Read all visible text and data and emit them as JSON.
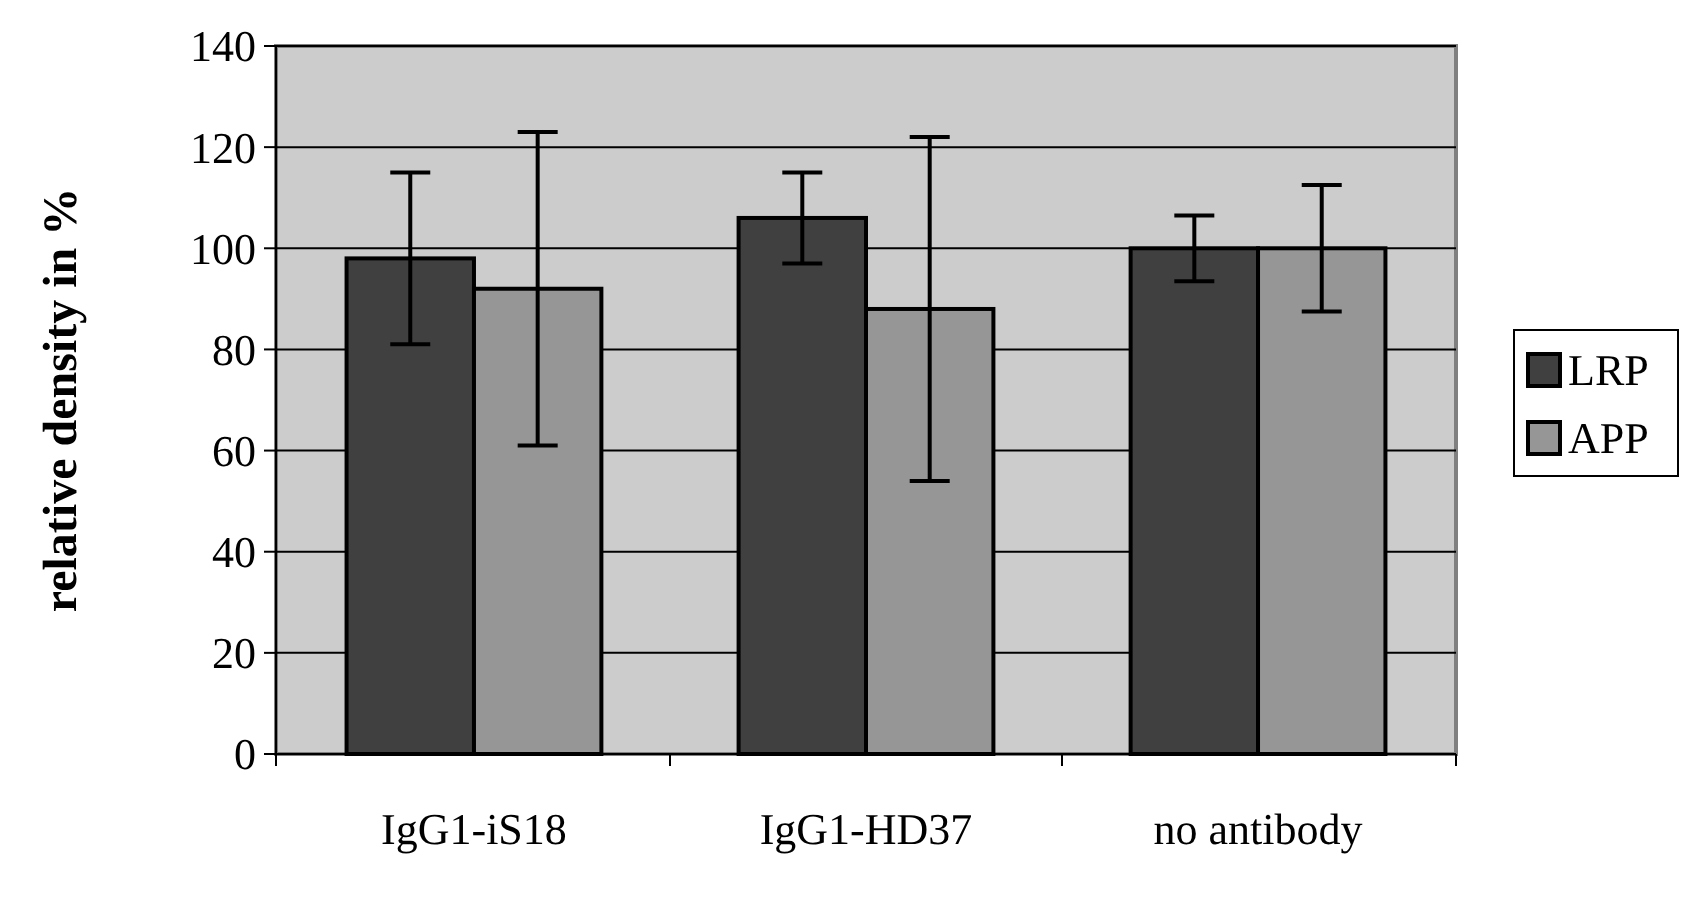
{
  "chart_data": {
    "type": "bar",
    "ylabel": "relative density in %",
    "categories": [
      "IgG1-iS18",
      "IgG1-HD37",
      "no antibody"
    ],
    "series": [
      {
        "name": "LRP",
        "color": "#404040",
        "values": [
          98,
          106,
          100
        ],
        "errors": [
          17,
          9,
          6.5
        ]
      },
      {
        "name": "APP",
        "color": "#969696",
        "values": [
          92,
          88,
          100
        ],
        "errors": [
          31,
          34,
          12.5
        ]
      }
    ],
    "ylim": [
      0,
      140
    ],
    "yticks": [
      0,
      20,
      40,
      60,
      80,
      100,
      120,
      140
    ],
    "grid": "y",
    "legend": "right"
  }
}
